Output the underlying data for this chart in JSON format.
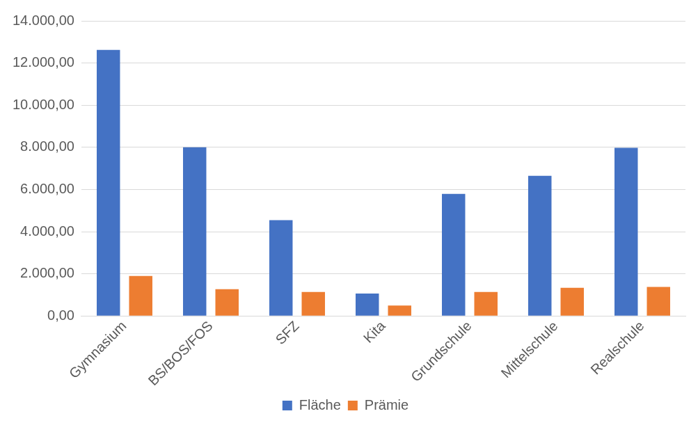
{
  "chart_data": {
    "type": "bar",
    "categories": [
      "Gymnasium",
      "BS/BOS/FOS",
      "SFZ",
      "Kita",
      "Grundschule",
      "Mittelschule",
      "Realschule"
    ],
    "series": [
      {
        "name": "Fläche",
        "color": "#4472c4",
        "values": [
          12620,
          8000,
          4550,
          1070,
          5790,
          6650,
          7980
        ]
      },
      {
        "name": "Prämie",
        "color": "#ed7d31",
        "values": [
          1900,
          1270,
          1140,
          500,
          1140,
          1340,
          1380
        ]
      }
    ],
    "ylim": [
      0,
      14000
    ],
    "yticks": [
      {
        "value": 0,
        "label": "0,00"
      },
      {
        "value": 2000,
        "label": "2.000,00"
      },
      {
        "value": 4000,
        "label": "4.000,00"
      },
      {
        "value": 6000,
        "label": "6.000,00"
      },
      {
        "value": 8000,
        "label": "8.000,00"
      },
      {
        "value": 10000,
        "label": "10.000,00"
      },
      {
        "value": 12000,
        "label": "12.000,00"
      },
      {
        "value": 14000,
        "label": "14.000,00"
      }
    ],
    "grid": "y",
    "legend": "bottom"
  }
}
